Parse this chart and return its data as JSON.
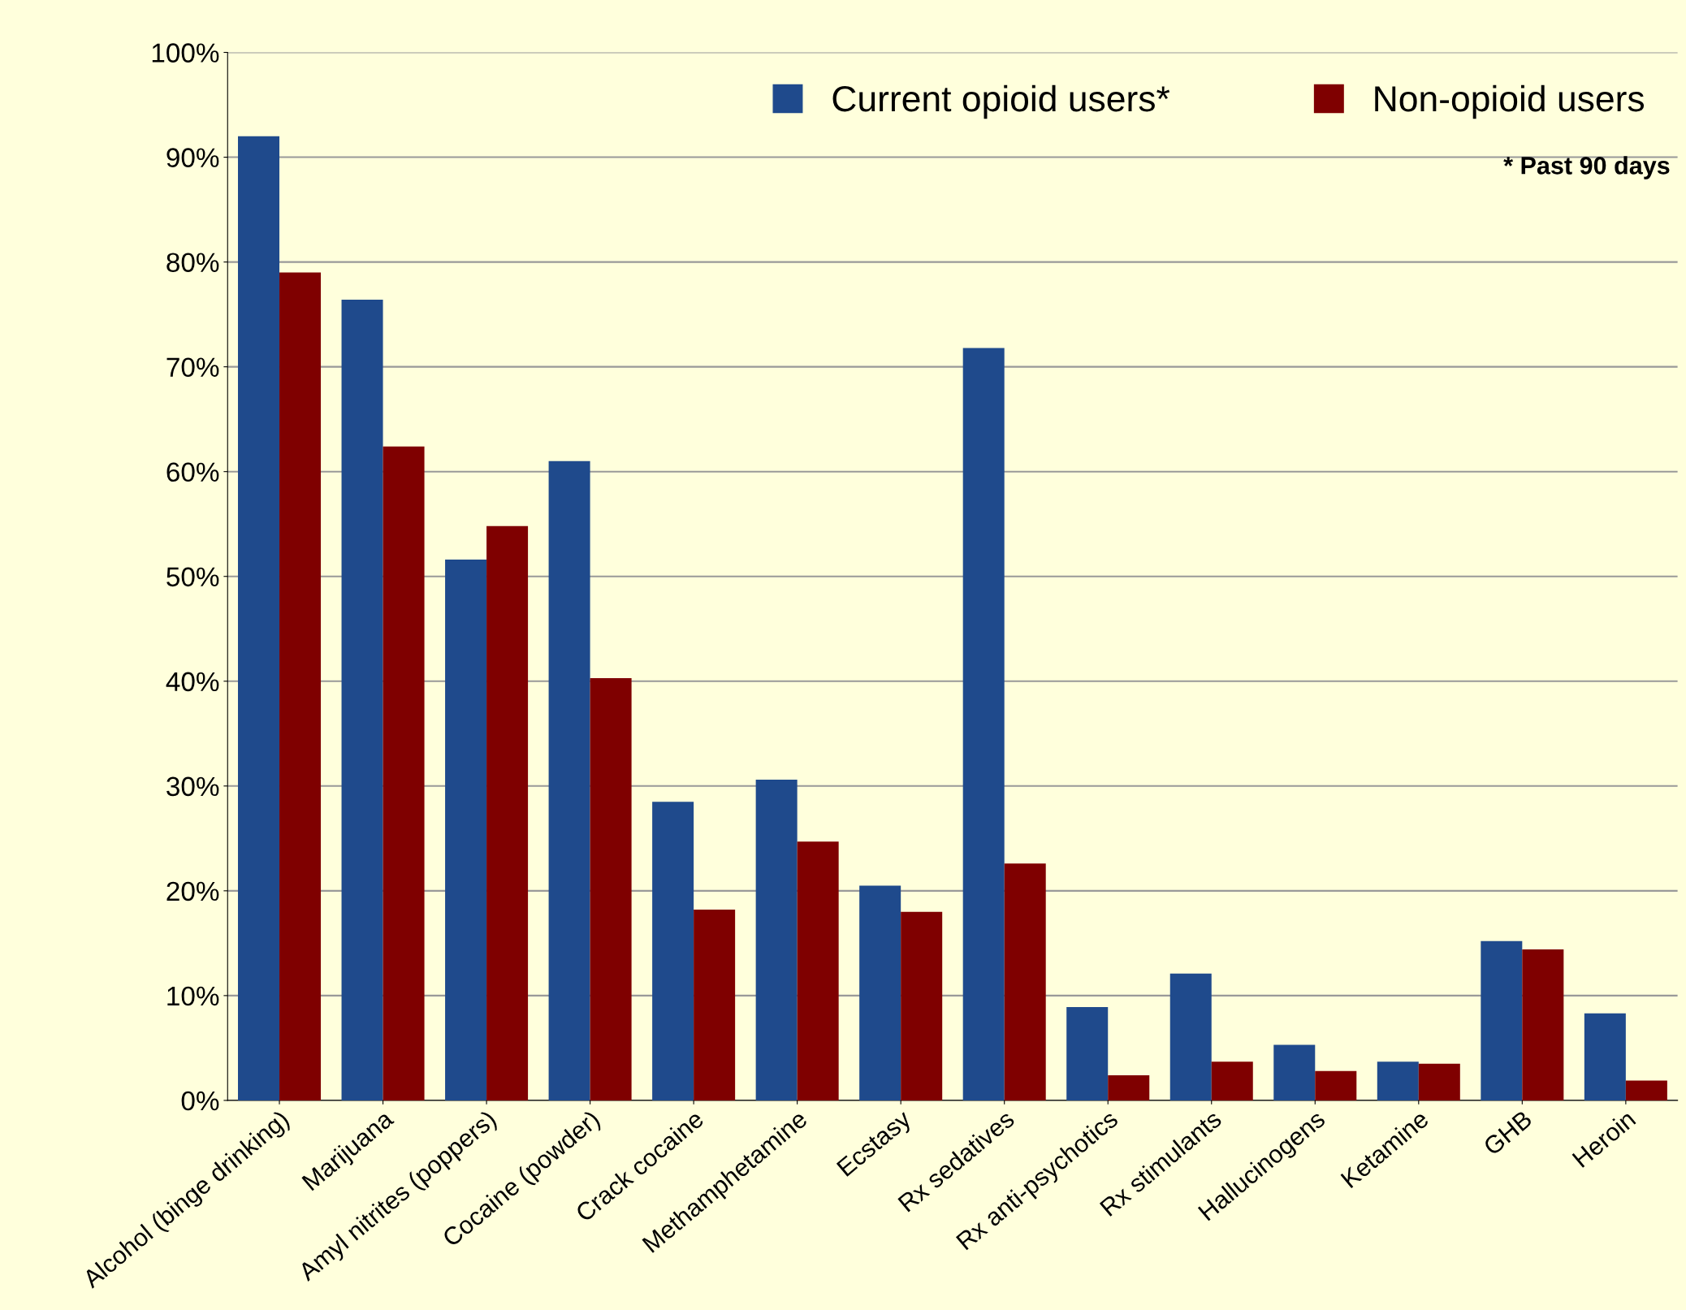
{
  "chart_data": {
    "type": "bar",
    "categories": [
      "Alcohol (binge drinking)",
      "Marijuana",
      "Amyl nitrites (poppers)",
      "Cocaine (powder)",
      "Crack cocaine",
      "Methamphetamine",
      "Ecstasy",
      "Rx sedatives",
      "Rx anti-psychotics",
      "Rx stimulants",
      "Hallucinogens",
      "Ketamine",
      "GHB",
      "Heroin"
    ],
    "series": [
      {
        "name": "Current opioid users*",
        "color": "#1f4a8c",
        "values": [
          92,
          76.4,
          51.6,
          61,
          28.5,
          30.6,
          20.5,
          71.8,
          8.9,
          12.1,
          5.3,
          3.7,
          15.2,
          8.3
        ]
      },
      {
        "name": "Non-opioid users",
        "color": "#7f0000",
        "values": [
          79,
          62.4,
          54.8,
          40.3,
          18.2,
          24.7,
          18,
          22.6,
          2.4,
          3.7,
          2.8,
          3.5,
          14.4,
          1.9
        ]
      }
    ],
    "ylim": [
      0,
      100
    ],
    "yticks": [
      {
        "value": 0,
        "label": "0%"
      },
      {
        "value": 10,
        "label": "10%"
      },
      {
        "value": 20,
        "label": "20%"
      },
      {
        "value": 30,
        "label": "30%"
      },
      {
        "value": 40,
        "label": "40%"
      },
      {
        "value": 50,
        "label": "50%"
      },
      {
        "value": 60,
        "label": "60%"
      },
      {
        "value": 70,
        "label": "70%"
      },
      {
        "value": 80,
        "label": "80%"
      },
      {
        "value": 90,
        "label": "90%"
      },
      {
        "value": 100,
        "label": "100%"
      }
    ],
    "annotations": [
      "* Past 90 days"
    ],
    "grid": "y",
    "legend": "top right"
  }
}
